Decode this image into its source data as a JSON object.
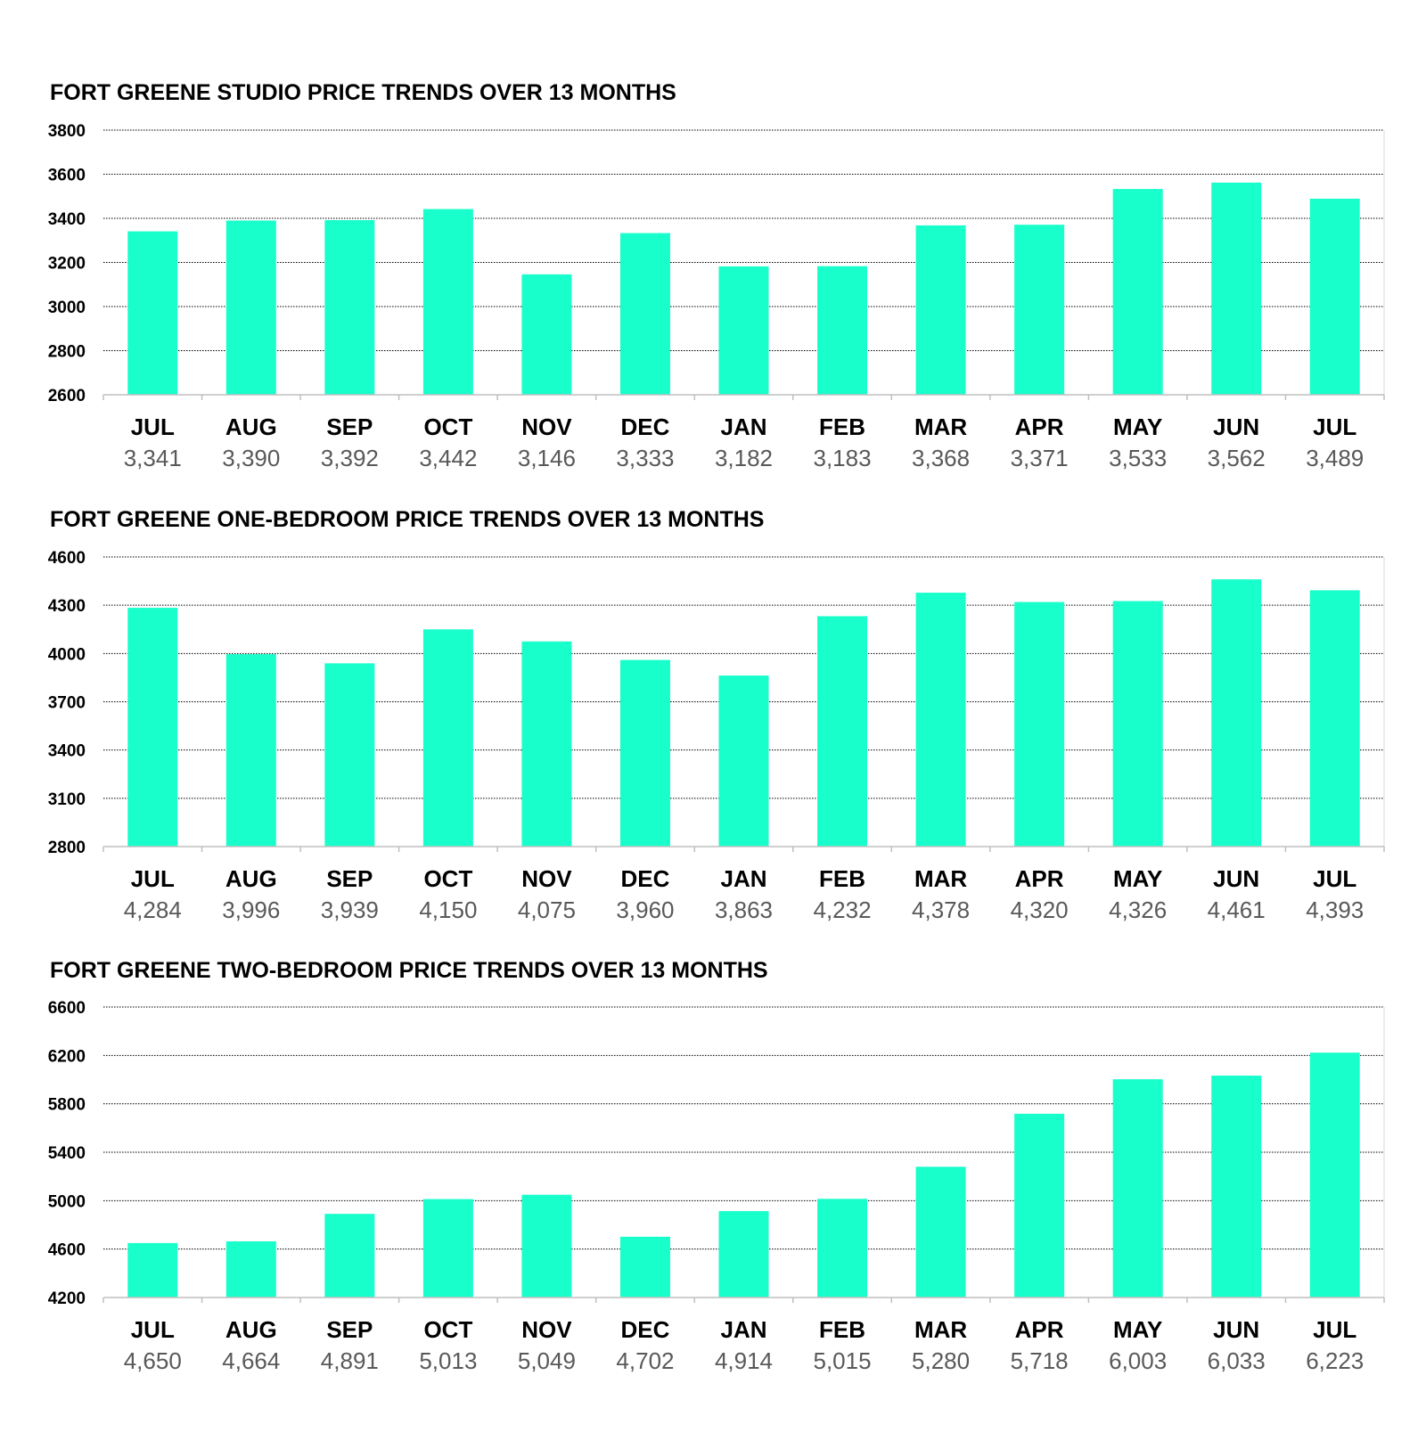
{
  "chart_data": [
    {
      "type": "bar",
      "title": "FORT GREENE STUDIO PRICE TRENDS OVER 13 MONTHS",
      "categories": [
        "JUL",
        "AUG",
        "SEP",
        "OCT",
        "NOV",
        "DEC",
        "JAN",
        "FEB",
        "MAR",
        "APR",
        "MAY",
        "JUN",
        "JUL"
      ],
      "values": [
        3341,
        3390,
        3392,
        3442,
        3146,
        3333,
        3182,
        3183,
        3368,
        3371,
        3533,
        3562,
        3489
      ],
      "value_labels": [
        "3,341",
        "3,390",
        "3,392",
        "3,442",
        "3,146",
        "3,333",
        "3,182",
        "3,183",
        "3,368",
        "3,371",
        "3,533",
        "3,562",
        "3,489"
      ],
      "ylim": [
        2600,
        3800
      ],
      "yticks": [
        "2600",
        "2800",
        "3000",
        "3200",
        "3400",
        "3600",
        "3800"
      ],
      "grid": true,
      "bar_color": "#19FFCB"
    },
    {
      "type": "bar",
      "title": "FORT GREENE ONE-BEDROOM PRICE TRENDS OVER 13 MONTHS",
      "categories": [
        "JUL",
        "AUG",
        "SEP",
        "OCT",
        "NOV",
        "DEC",
        "JAN",
        "FEB",
        "MAR",
        "APR",
        "MAY",
        "JUN",
        "JUL"
      ],
      "values": [
        4284,
        3996,
        3939,
        4150,
        4075,
        3960,
        3863,
        4232,
        4378,
        4320,
        4326,
        4461,
        4393
      ],
      "value_labels": [
        "4,284",
        "3,996",
        "3,939",
        "4,150",
        "4,075",
        "3,960",
        "3,863",
        "4,232",
        "4,378",
        "4,320",
        "4,326",
        "4,461",
        "4,393"
      ],
      "ylim": [
        2800,
        4600
      ],
      "yticks": [
        "2800",
        "3100",
        "3400",
        "3700",
        "4000",
        "4300",
        "4600"
      ],
      "grid": true,
      "bar_color": "#19FFCB"
    },
    {
      "type": "bar",
      "title": "FORT GREENE TWO-BEDROOM PRICE TRENDS OVER 13 MONTHS",
      "categories": [
        "JUL",
        "AUG",
        "SEP",
        "OCT",
        "NOV",
        "DEC",
        "JAN",
        "FEB",
        "MAR",
        "APR",
        "MAY",
        "JUN",
        "JUL"
      ],
      "values": [
        4650,
        4664,
        4891,
        5013,
        5049,
        4702,
        4914,
        5015,
        5280,
        5718,
        6003,
        6033,
        6223
      ],
      "value_labels": [
        "4,650",
        "4,664",
        "4,891",
        "5,013",
        "5,049",
        "4,702",
        "4,914",
        "5,015",
        "5,280",
        "5,718",
        "6,003",
        "6,033",
        "6,223"
      ],
      "ylim": [
        4200,
        6600
      ],
      "yticks": [
        "4200",
        "4600",
        "5000",
        "5400",
        "5800",
        "6200",
        "6600"
      ],
      "grid": true,
      "bar_color": "#19FFCB"
    }
  ]
}
